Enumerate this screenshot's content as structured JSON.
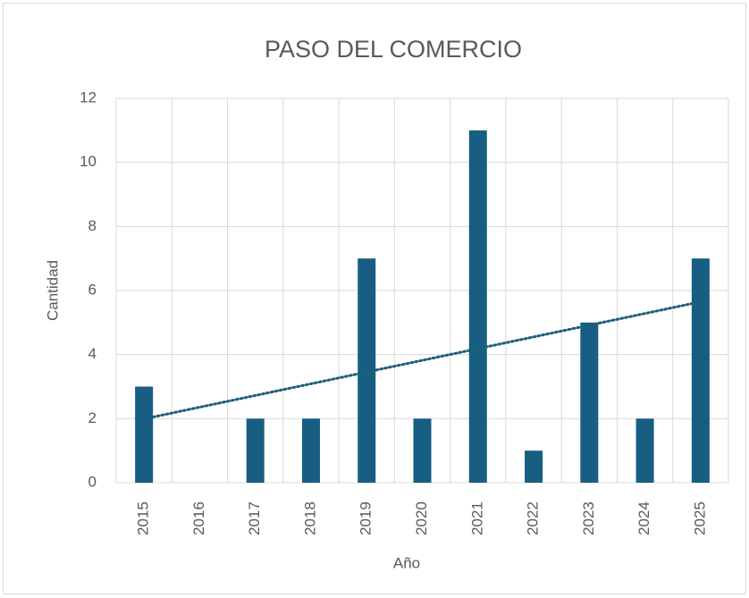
{
  "chart_data": {
    "type": "bar",
    "title": "PASO DEL COMERCIO",
    "x_label": "Año",
    "y_label": "Cantidad",
    "categories": [
      "2015",
      "2016",
      "2017",
      "2018",
      "2019",
      "2020",
      "2021",
      "2022",
      "2023",
      "2024",
      "2025"
    ],
    "values": [
      3,
      0,
      2,
      2,
      7,
      2,
      11,
      1,
      5,
      2,
      7
    ],
    "color": "#175e82",
    "ylim": [
      0,
      12
    ],
    "yticks": [
      0,
      2,
      4,
      6,
      8,
      10,
      12
    ],
    "grid": true,
    "trendline": {
      "type": "linear",
      "values": [
        2.05,
        5.59
      ],
      "color": "#1b5f7a"
    }
  }
}
